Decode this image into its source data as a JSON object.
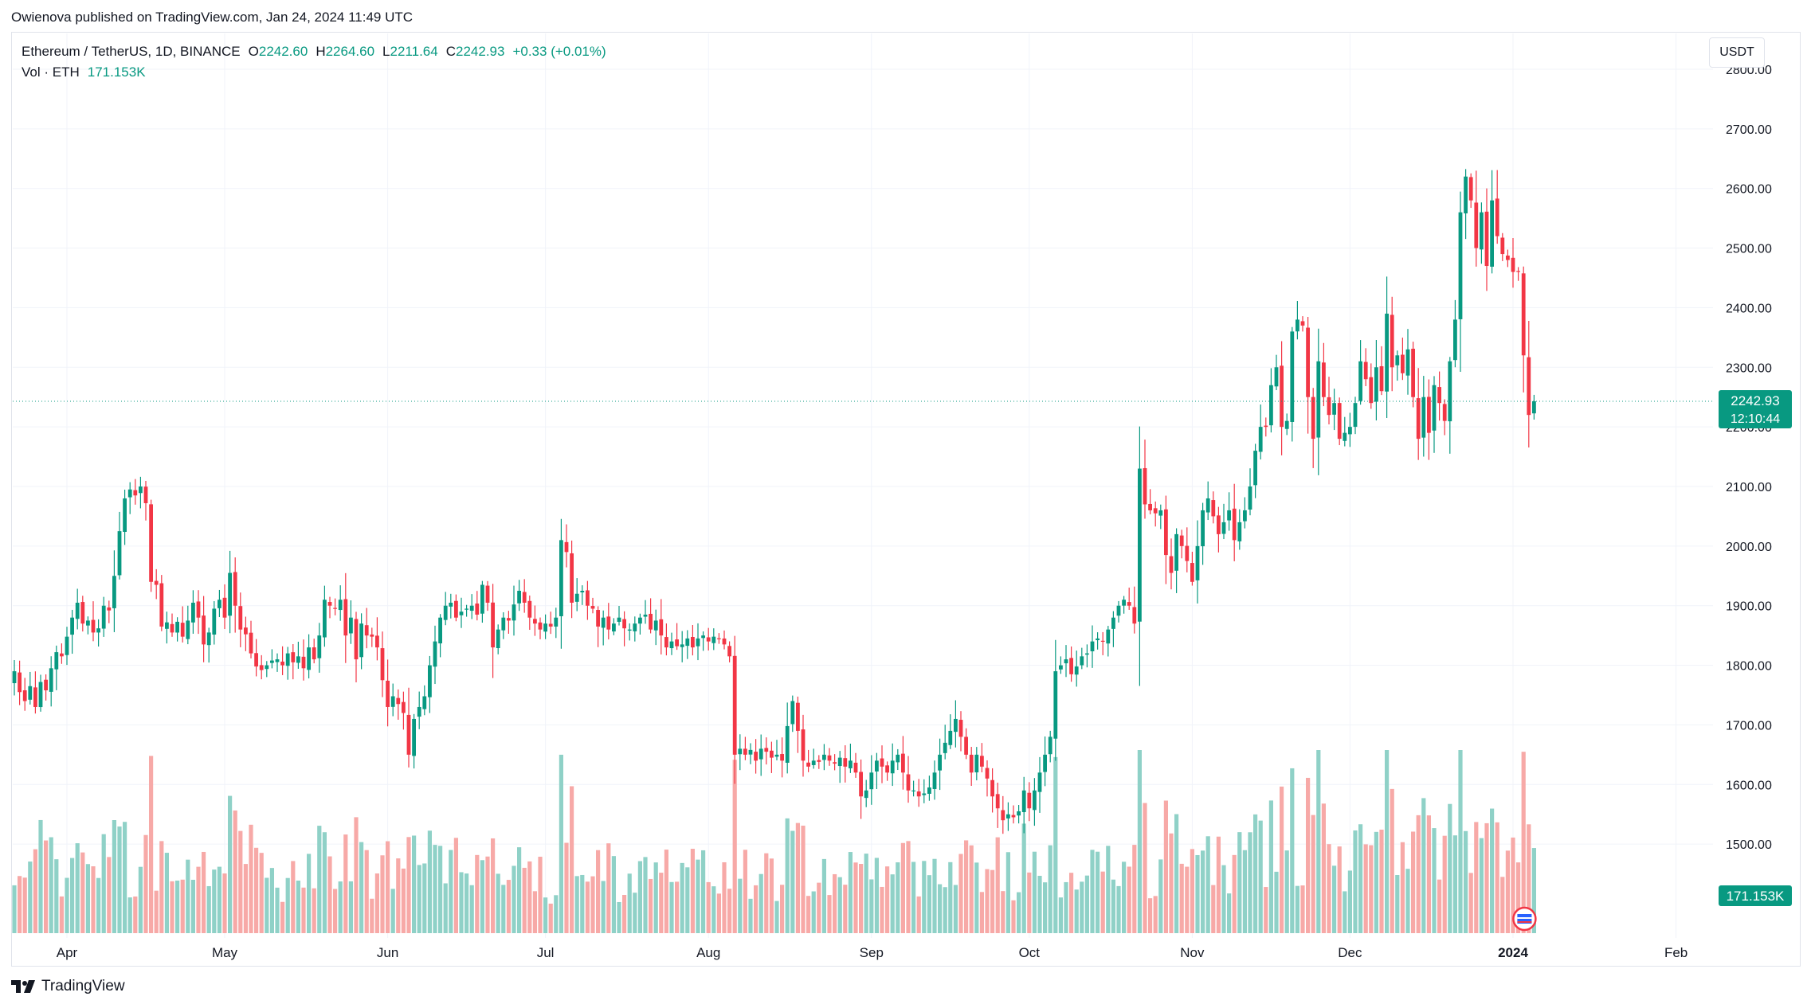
{
  "header": {
    "publisher_line": "Owienova published on TradingView.com, Jan 24, 2024 11:49 UTC"
  },
  "legend": {
    "symbol": "Ethereum / TetherUS, 1D, BINANCE",
    "o_label": "O",
    "o_value": "2242.60",
    "h_label": "H",
    "h_value": "2264.60",
    "l_label": "L",
    "l_value": "2211.64",
    "c_label": "C",
    "c_value": "2242.93",
    "change": "+0.33 (+0.01%)",
    "vol_label": "Vol · ETH",
    "vol_value": "171.153K"
  },
  "currency_button": "USDT",
  "footer": {
    "brand": "TradingView"
  },
  "colors": {
    "up": "#089981",
    "down": "#f23645",
    "up_vol": "#8fd1c7",
    "down_vol": "#f7a9a7",
    "grid": "#f0f3fa",
    "axis_text": "#131722"
  },
  "chart_data": {
    "type": "candlestick",
    "title": "Ethereum / TetherUS, 1D, BINANCE",
    "ylim": [
      1400,
      2800
    ],
    "yticks": [
      1500,
      1600,
      1700,
      1800,
      1900,
      2000,
      2100,
      2200,
      2300,
      2400,
      2500,
      2600,
      2700,
      2800
    ],
    "ytick_labels": [
      "1500.00",
      "1600.00",
      "1700.00",
      "1800.00",
      "1900.00",
      "2000.00",
      "2100.00",
      "2200.00",
      "2300.00",
      "2400.00",
      "2500.00",
      "2600.00",
      "2700.00",
      "2800.00"
    ],
    "xticks": [
      {
        "label": "Apr",
        "day": 10
      },
      {
        "label": "May",
        "day": 40
      },
      {
        "label": "Jun",
        "day": 71
      },
      {
        "label": "Jul",
        "day": 101
      },
      {
        "label": "Aug",
        "day": 132
      },
      {
        "label": "Sep",
        "day": 163
      },
      {
        "label": "Oct",
        "day": 193
      },
      {
        "label": "Nov",
        "day": 224
      },
      {
        "label": "Dec",
        "day": 254
      },
      {
        "label": "2024",
        "day": 285
      },
      {
        "label": "Feb",
        "day": 316
      }
    ],
    "last_price": 2242.93,
    "last_price_label": "2242.93",
    "countdown_label": "12:10:44",
    "volume_label": "171.153K",
    "close_series": [
      1790,
      1755,
      1740,
      1765,
      1730,
      1772,
      1758,
      1795,
      1822,
      1815,
      1848,
      1880,
      1905,
      1870,
      1875,
      1855,
      1862,
      1900,
      1892,
      1950,
      2025,
      2080,
      2095,
      2085,
      2100,
      2072,
      1940,
      1935,
      1865,
      1872,
      1855,
      1873,
      1848,
      1875,
      1905,
      1880,
      1835,
      1855,
      1895,
      1910,
      1880,
      1955,
      1900,
      1860,
      1852,
      1820,
      1798,
      1792,
      1800,
      1808,
      1810,
      1800,
      1820,
      1805,
      1815,
      1795,
      1830,
      1810,
      1850,
      1910,
      1900,
      1895,
      1910,
      1850,
      1880,
      1810,
      1870,
      1850,
      1848,
      1830,
      1775,
      1730,
      1748,
      1735,
      1720,
      1650,
      1710,
      1730,
      1748,
      1800,
      1840,
      1880,
      1900,
      1905,
      1880,
      1890,
      1895,
      1900,
      1885,
      1935,
      1905,
      1830,
      1860,
      1880,
      1875,
      1902,
      1925,
      1905,
      1880,
      1870,
      1860,
      1870,
      1865,
      1880,
      2010,
      1990,
      1905,
      1920,
      1925,
      1900,
      1895,
      1865,
      1880,
      1860,
      1870,
      1880,
      1862,
      1860,
      1870,
      1880,
      1885,
      1860,
      1875,
      1850,
      1830,
      1840,
      1832,
      1835,
      1845,
      1830,
      1845,
      1850,
      1840,
      1848,
      1845,
      1835,
      1815,
      1650,
      1660,
      1650,
      1658,
      1640,
      1660,
      1655,
      1645,
      1650,
      1640,
      1698,
      1740,
      1690,
      1640,
      1630,
      1640,
      1638,
      1650,
      1640,
      1635,
      1645,
      1630,
      1640,
      1620,
      1580,
      1590,
      1620,
      1640,
      1630,
      1620,
      1640,
      1650,
      1620,
      1590,
      1590,
      1580,
      1585,
      1595,
      1620,
      1650,
      1670,
      1690,
      1710,
      1680,
      1650,
      1620,
      1650,
      1630,
      1610,
      1580,
      1560,
      1540,
      1550,
      1545,
      1555,
      1590,
      1560,
      1590,
      1620,
      1650,
      1680,
      1790,
      1800,
      1810,
      1785,
      1798,
      1815,
      1820,
      1840,
      1845,
      1840,
      1860,
      1880,
      1900,
      1910,
      1900,
      1870,
      2130,
      2070,
      2060,
      2055,
      2060,
      1985,
      1955,
      2020,
      2000,
      1975,
      1940,
      2000,
      2060,
      2080,
      2050,
      2020,
      2040,
      2060,
      2010,
      2040,
      2060,
      2100,
      2160,
      2200,
      2200,
      2270,
      2300,
      2200,
      2210,
      2360,
      2380,
      2370,
      2250,
      2180,
      2310,
      2250,
      2220,
      2240,
      2180,
      2190,
      2200,
      2240,
      2310,
      2280,
      2240,
      2300,
      2260,
      2390,
      2300,
      2320,
      2290,
      2330,
      2250,
      2180,
      2250,
      2190,
      2270,
      2240,
      2210,
      2310,
      2380,
      2560,
      2620,
      2580,
      2500,
      2560,
      2470,
      2580,
      2520,
      2490,
      2480,
      2460,
      2460,
      2320,
      2220,
      2243
    ],
    "volume_note": "relative volume heights estimated per day, sharing the same day index as close_series"
  }
}
